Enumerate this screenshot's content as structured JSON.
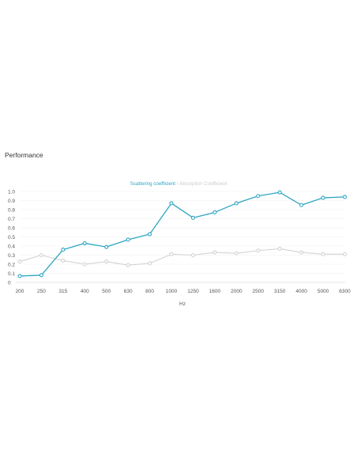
{
  "page": {
    "section_title": "Performance"
  },
  "chart_data": {
    "type": "line",
    "legend": {
      "scatter": "Scattering coefficient",
      "separator": " / ",
      "absorption": "Absorption Coefficient"
    },
    "categories": [
      "200",
      "250",
      "315",
      "400",
      "500",
      "630",
      "800",
      "1000",
      "1250",
      "1600",
      "2000",
      "2500",
      "3150",
      "4000",
      "5000",
      "6300"
    ],
    "series": [
      {
        "name": "Scattering coefficient",
        "color": "#2ea6c2",
        "values": [
          0.07,
          0.08,
          0.36,
          0.43,
          0.39,
          0.47,
          0.53,
          0.87,
          0.71,
          0.77,
          0.87,
          0.95,
          0.99,
          0.85,
          0.93,
          0.94
        ]
      },
      {
        "name": "Absorption Coefficient",
        "color": "#d3d3d3",
        "values": [
          0.23,
          0.3,
          0.24,
          0.2,
          0.23,
          0.19,
          0.21,
          0.31,
          0.3,
          0.33,
          0.32,
          0.35,
          0.37,
          0.33,
          0.31,
          0.31
        ]
      }
    ],
    "y_ticks": [
      "0",
      "0.1",
      "0.2",
      "0.3",
      "0.4",
      "0.5",
      "0.6",
      "0.7",
      "0.8",
      "0.9",
      "1.0"
    ],
    "ylim": [
      0,
      1.0
    ],
    "xlabel": "Hz",
    "ylabel": "",
    "grid": true,
    "legend_position": "top-center"
  }
}
